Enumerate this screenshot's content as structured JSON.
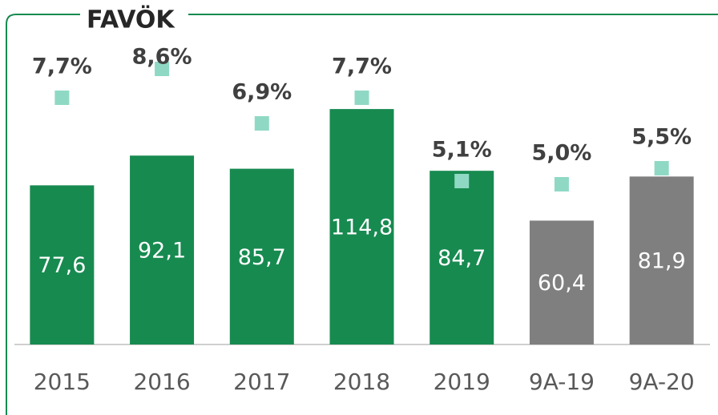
{
  "chart_data": {
    "type": "bar",
    "title": "FAVÖK",
    "categories": [
      "2015",
      "2016",
      "2017",
      "2018",
      "2019",
      "9A-19",
      "9A-20"
    ],
    "series": [
      {
        "type": "bar",
        "colors": [
          "#178a50",
          "#178a50",
          "#178a50",
          "#178a50",
          "#178a50",
          "#7f7f7f",
          "#7f7f7f"
        ],
        "values": [
          77.6,
          92.1,
          85.7,
          114.8,
          84.7,
          60.4,
          81.9
        ],
        "value_labels": [
          "77,6",
          "92,1",
          "85,7",
          "114,8",
          "84,7",
          "60,4",
          "81,9"
        ]
      },
      {
        "type": "marker",
        "axis": "y2",
        "color": "#8fd9c4",
        "values": [
          7.7,
          8.6,
          6.9,
          7.7,
          5.1,
          5.0,
          5.5
        ],
        "value_labels": [
          "7,7%",
          "8,6%",
          "6,9%",
          "7,7%",
          "5,1%",
          "5,0%",
          "5,5%"
        ]
      }
    ],
    "ylim": [
      0,
      150
    ],
    "y2lim": [
      0,
      9.6
    ]
  }
}
